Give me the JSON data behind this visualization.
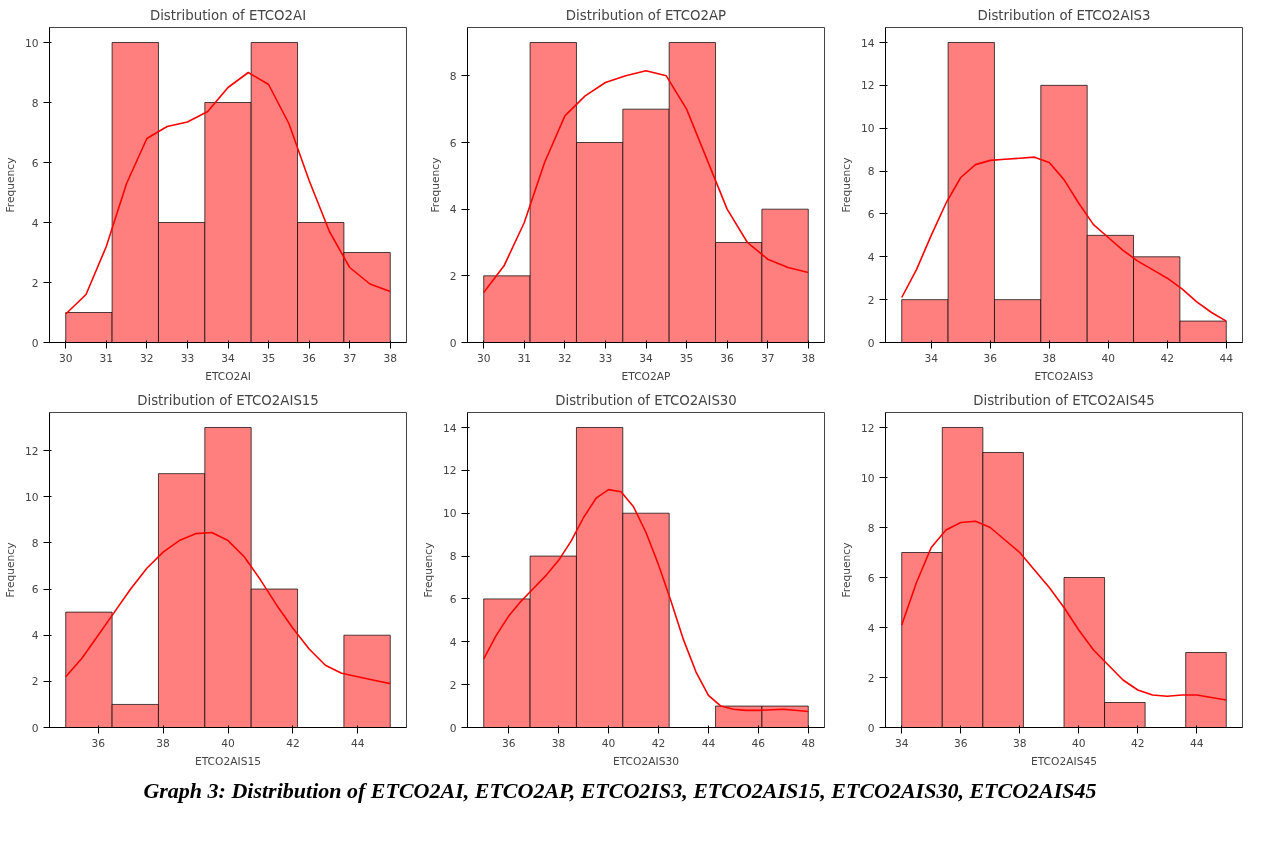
{
  "chart_data": [
    {
      "type": "histogram",
      "title": "Distribution of ETCO2AI",
      "xlabel": "ETCO2AI",
      "ylabel": "Frequency",
      "xlim": [
        29.6,
        38.4
      ],
      "ylim": [
        0,
        10.5
      ],
      "xticks": [
        30,
        31,
        32,
        33,
        34,
        35,
        36,
        37,
        38
      ],
      "yticks": [
        0,
        2,
        4,
        6,
        8,
        10
      ],
      "grid": false,
      "series": [
        {
          "type": "histogram",
          "color": "#ff7f7f",
          "bins": [
            30,
            31.143,
            32.286,
            33.429,
            34.571,
            35.714,
            36.857,
            38
          ],
          "values": [
            1,
            10,
            4,
            8,
            10,
            4,
            3
          ]
        },
        {
          "type": "line",
          "color": "#ff0000",
          "x": [
            30,
            30.5,
            31,
            31.5,
            32,
            32.5,
            33,
            33.5,
            34,
            34.5,
            35,
            35.5,
            36,
            36.5,
            37,
            37.5,
            38
          ],
          "values": [
            0.95,
            1.6,
            3.2,
            5.3,
            6.8,
            7.2,
            7.35,
            7.7,
            8.5,
            9.0,
            8.6,
            7.3,
            5.4,
            3.7,
            2.5,
            1.95,
            1.7
          ]
        }
      ]
    },
    {
      "type": "histogram",
      "title": "Distribution of ETCO2AP",
      "xlabel": "ETCO2AP",
      "ylabel": "Frequency",
      "xlim": [
        29.6,
        38.4
      ],
      "ylim": [
        0,
        9.45
      ],
      "xticks": [
        30,
        31,
        32,
        33,
        34,
        35,
        36,
        37,
        38
      ],
      "yticks": [
        0,
        2,
        4,
        6,
        8
      ],
      "grid": false,
      "series": [
        {
          "type": "histogram",
          "color": "#ff7f7f",
          "bins": [
            30,
            31.143,
            32.286,
            33.429,
            34.571,
            35.714,
            36.857,
            38
          ],
          "values": [
            2,
            9,
            6,
            7,
            9,
            3,
            4
          ]
        },
        {
          "type": "line",
          "color": "#ff0000",
          "x": [
            30,
            30.5,
            31,
            31.5,
            32,
            32.5,
            33,
            33.5,
            34,
            34.5,
            35,
            35.5,
            36,
            36.5,
            37,
            37.5,
            38
          ],
          "values": [
            1.5,
            2.3,
            3.6,
            5.4,
            6.8,
            7.4,
            7.8,
            8.0,
            8.15,
            8.0,
            7.0,
            5.5,
            4.0,
            3.0,
            2.5,
            2.25,
            2.1
          ]
        }
      ]
    },
    {
      "type": "histogram",
      "title": "Distribution of ETCO2AIS3",
      "xlabel": "ETCO2AIS3",
      "ylabel": "Frequency",
      "xlim": [
        32.45,
        44.55
      ],
      "ylim": [
        0,
        14.7
      ],
      "xticks": [
        34,
        36,
        38,
        40,
        42,
        44
      ],
      "yticks": [
        0,
        2,
        4,
        6,
        8,
        10,
        12,
        14
      ],
      "grid": false,
      "series": [
        {
          "type": "histogram",
          "color": "#ff7f7f",
          "bins": [
            33,
            34.571,
            36.143,
            37.714,
            39.286,
            40.857,
            42.429,
            44
          ],
          "values": [
            2,
            14,
            2,
            12,
            5,
            4,
            1
          ]
        },
        {
          "type": "line",
          "color": "#ff0000",
          "x": [
            33,
            33.5,
            34,
            34.5,
            35,
            35.5,
            36,
            36.5,
            37,
            37.5,
            38,
            38.5,
            39,
            39.5,
            40,
            40.5,
            41,
            41.5,
            42,
            42.5,
            43,
            43.5,
            44
          ],
          "values": [
            2.1,
            3.4,
            5.0,
            6.5,
            7.7,
            8.3,
            8.5,
            8.55,
            8.6,
            8.65,
            8.4,
            7.6,
            6.5,
            5.5,
            4.9,
            4.3,
            3.8,
            3.4,
            3.0,
            2.5,
            1.9,
            1.4,
            1.0
          ]
        }
      ]
    },
    {
      "type": "histogram",
      "title": "Distribution of ETCO2AIS15",
      "xlabel": "ETCO2AIS15",
      "ylabel": "Frequency",
      "xlim": [
        34.5,
        45.5
      ],
      "ylim": [
        0,
        13.65
      ],
      "xticks": [
        36,
        38,
        40,
        42,
        44
      ],
      "yticks": [
        0,
        2,
        4,
        6,
        8,
        10,
        12
      ],
      "grid": false,
      "series": [
        {
          "type": "histogram",
          "color": "#ff7f7f",
          "bins": [
            35,
            36.429,
            37.857,
            39.286,
            40.714,
            42.143,
            43.571,
            45
          ],
          "values": [
            5,
            1,
            11,
            13,
            6,
            0,
            4
          ]
        },
        {
          "type": "line",
          "color": "#ff0000",
          "x": [
            35,
            35.5,
            36,
            36.5,
            37,
            37.5,
            38,
            38.5,
            39,
            39.5,
            40,
            40.5,
            41,
            41.5,
            42,
            42.5,
            43,
            43.5,
            44,
            44.5,
            45
          ],
          "values": [
            2.2,
            3.0,
            4.0,
            5.0,
            6.0,
            6.9,
            7.6,
            8.1,
            8.4,
            8.45,
            8.1,
            7.4,
            6.4,
            5.3,
            4.3,
            3.4,
            2.7,
            2.35,
            2.2,
            2.05,
            1.9
          ]
        }
      ]
    },
    {
      "type": "histogram",
      "title": "Distribution of ETCO2AIS30",
      "xlabel": "ETCO2AIS30",
      "ylabel": "Frequency",
      "xlim": [
        34.35,
        48.65
      ],
      "ylim": [
        0,
        14.7
      ],
      "xticks": [
        36,
        38,
        40,
        42,
        44,
        46,
        48
      ],
      "yticks": [
        0,
        2,
        4,
        6,
        8,
        10,
        12,
        14
      ],
      "grid": false,
      "series": [
        {
          "type": "histogram",
          "color": "#ff7f7f",
          "bins": [
            35,
            36.857,
            38.714,
            40.571,
            42.429,
            44.286,
            46.143,
            48
          ],
          "values": [
            6,
            8,
            14,
            10,
            0,
            1,
            1
          ]
        },
        {
          "type": "line",
          "color": "#ff0000",
          "x": [
            35,
            35.5,
            36,
            36.5,
            37,
            37.5,
            38,
            38.5,
            39,
            39.5,
            40,
            40.5,
            41,
            41.5,
            42,
            42.5,
            43,
            43.5,
            44,
            44.5,
            45,
            45.5,
            46,
            47,
            48
          ],
          "values": [
            3.2,
            4.3,
            5.2,
            5.9,
            6.5,
            7.1,
            7.8,
            8.7,
            9.8,
            10.7,
            11.1,
            11.0,
            10.3,
            9.1,
            7.6,
            5.9,
            4.1,
            2.6,
            1.5,
            1.0,
            0.85,
            0.8,
            0.8,
            0.85,
            0.75
          ]
        }
      ]
    },
    {
      "type": "histogram",
      "title": "Distribution of ETCO2AIS45",
      "xlabel": "ETCO2AIS45",
      "ylabel": "Frequency",
      "xlim": [
        33.45,
        45.55
      ],
      "ylim": [
        0,
        12.6
      ],
      "xticks": [
        34,
        36,
        38,
        40,
        42,
        44
      ],
      "yticks": [
        0,
        2,
        4,
        6,
        8,
        10,
        12
      ],
      "grid": false,
      "annotations": [
        "Graph 3: Distribution of ETCO2AI, ETCO2AP, ETCO2IS3, ETCO2AIS15, ETCO2AIS30, ETCO2AIS45"
      ],
      "series": [
        {
          "type": "histogram",
          "color": "#ff7f7f",
          "bins": [
            34,
            35.375,
            36.75,
            38.125,
            39.5,
            40.875,
            42.25,
            43.625,
            45
          ],
          "values": [
            7,
            12,
            11,
            0,
            6,
            1,
            0,
            3
          ]
        },
        {
          "type": "line",
          "color": "#ff0000",
          "x": [
            34,
            34.5,
            35,
            35.5,
            36,
            36.5,
            37,
            37.5,
            38,
            38.5,
            39,
            39.5,
            40,
            40.5,
            41,
            41.5,
            42,
            42.5,
            43,
            43.5,
            44,
            44.5,
            45
          ],
          "values": [
            4.1,
            5.8,
            7.2,
            7.9,
            8.2,
            8.25,
            8.0,
            7.5,
            7.0,
            6.3,
            5.6,
            4.8,
            3.9,
            3.1,
            2.5,
            1.9,
            1.5,
            1.3,
            1.25,
            1.3,
            1.3,
            1.2,
            1.1
          ]
        }
      ]
    }
  ]
}
